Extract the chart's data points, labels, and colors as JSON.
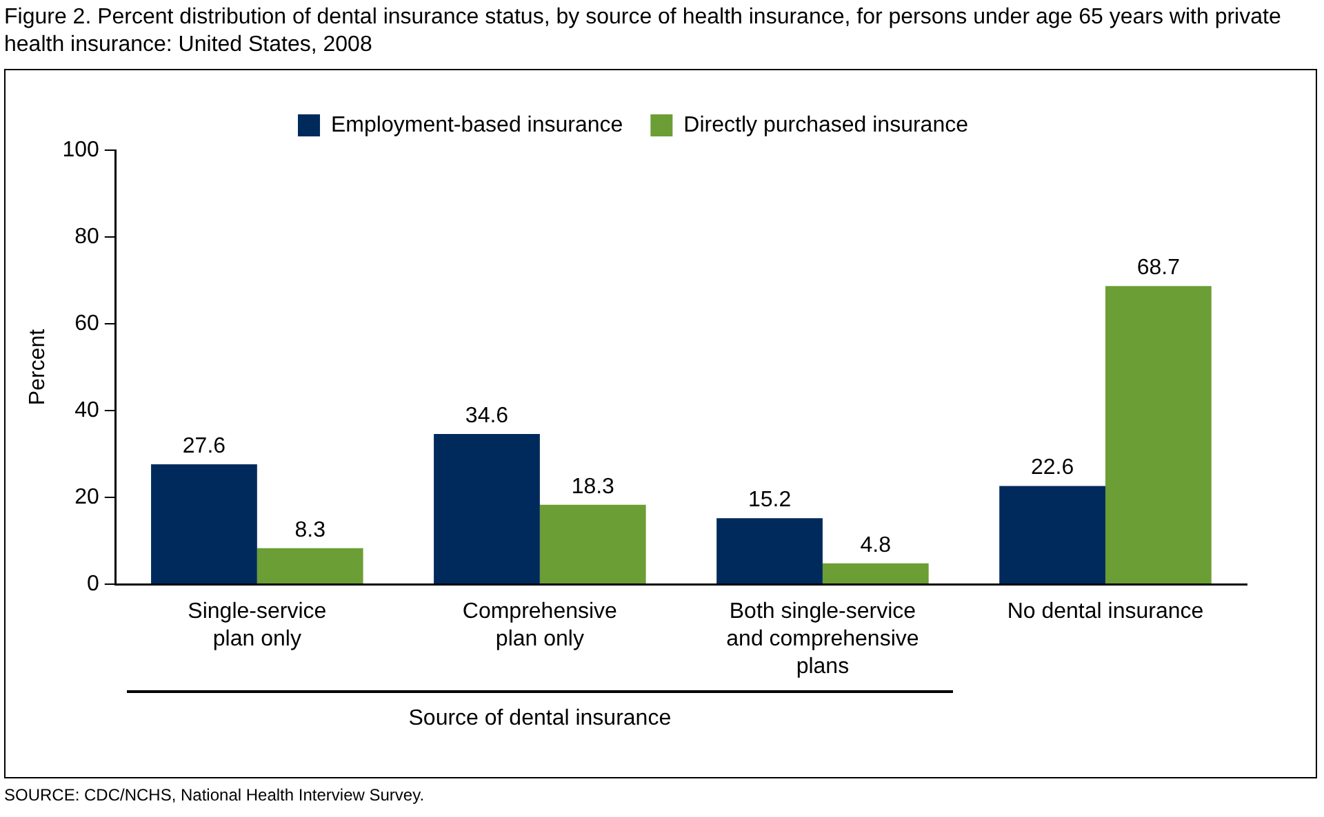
{
  "chart_data": {
    "type": "bar",
    "title": "Figure 2. Percent distribution of dental insurance status, by source of health insurance, for persons under age 65 years with private health insurance: United States, 2008",
    "xlabel": "Source of dental insurance",
    "ylabel": "Percent",
    "categories": [
      "Single-service plan only",
      "Comprehensive plan only",
      "Both single-service and comprehensive plans",
      "No dental insurance"
    ],
    "series": [
      {
        "name": "Employment-based insurance",
        "color": "#002a5c",
        "values": [
          27.6,
          34.6,
          15.2,
          22.6
        ]
      },
      {
        "name": "Directly purchased insurance",
        "color": "#6b9e35",
        "values": [
          8.3,
          18.3,
          4.8,
          68.7
        ]
      }
    ],
    "ylim": [
      0,
      100
    ],
    "yticks": [
      0,
      20,
      40,
      60,
      80,
      100
    ],
    "grid": false,
    "legend": "top",
    "data_labels": true,
    "annotations": [
      "SOURCE: CDC/NCHS, National Health Interview Survey."
    ]
  }
}
